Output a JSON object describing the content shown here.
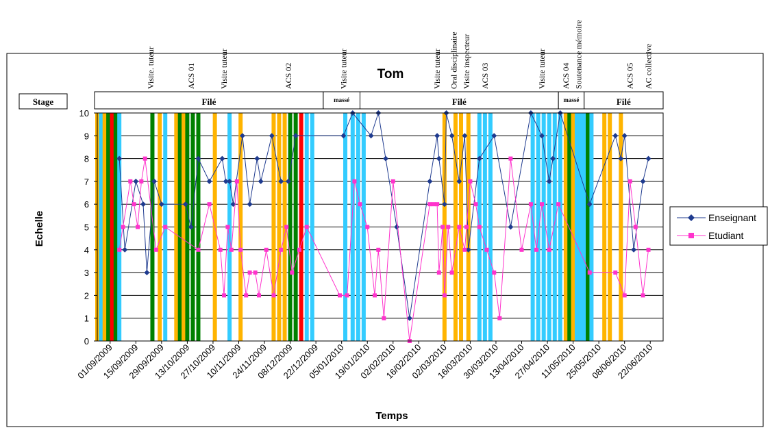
{
  "chart_data": {
    "type": "line",
    "title": "Tom",
    "xlabel": "Temps",
    "ylabel": "Echelle",
    "ylim": [
      0,
      10
    ],
    "yticks": [
      0,
      1,
      2,
      3,
      4,
      5,
      6,
      7,
      8,
      9,
      10
    ],
    "grid": true,
    "legend_position": "right",
    "x_tick_labels": [
      "01/09/2009",
      "15/09/2009",
      "29/09/2009",
      "13/10/2009",
      "27/10/2009",
      "10/11/2009",
      "24/11/2009",
      "08/12/2009",
      "22/12/2009",
      "05/01/2010",
      "19/01/2010",
      "02/02/2010",
      "16/02/2010",
      "02/03/2010",
      "16/03/2010",
      "30/03/2010",
      "13/04/2010",
      "27/04/2010",
      "11/05/2010",
      "25/05/2010",
      "08/06/2010",
      "22/06/2010"
    ],
    "stage_label": "Stage",
    "phases": [
      {
        "label": "Filé",
        "start": "2009-09-01",
        "end": "2010-01-02",
        "style": "normal"
      },
      {
        "label": "massé",
        "start": "2010-01-02",
        "end": "2010-01-22",
        "style": "small"
      },
      {
        "label": "Filé",
        "start": "2010-01-22",
        "end": "2010-05-10",
        "style": "normal"
      },
      {
        "label": "massé",
        "start": "2010-05-10",
        "end": "2010-05-24",
        "style": "small"
      },
      {
        "label": "Filé",
        "start": "2010-05-24",
        "end": "2010-07-06",
        "style": "normal"
      }
    ],
    "events": [
      {
        "label": "Visite. tuteur",
        "date": "2009-09-30"
      },
      {
        "label": "ACS 01",
        "date": "2009-10-22"
      },
      {
        "label": "Visite  tuteur",
        "date": "2009-11-09"
      },
      {
        "label": "ACS 02",
        "date": "2009-12-14"
      },
      {
        "label": "Visite tuteur",
        "date": "2010-01-13"
      },
      {
        "label": "Visite tuteur",
        "date": "2010-03-05"
      },
      {
        "label": "Oral disciplinaire",
        "date": "2010-03-14"
      },
      {
        "label": "Visite inspecteur",
        "date": "2010-03-21"
      },
      {
        "label": "ACS 03",
        "date": "2010-03-31"
      },
      {
        "label": "Visite tuteur",
        "date": "2010-05-01"
      },
      {
        "label": "ACS 04",
        "date": "2010-05-14"
      },
      {
        "label": "Soutenance mémoire",
        "date": "2010-05-21"
      },
      {
        "label": "ACS 05",
        "date": "2010-06-18"
      },
      {
        "label": "AC collective",
        "date": "2010-06-28"
      }
    ],
    "bars": [
      {
        "date": "2009-09-01",
        "color": "#FFB400"
      },
      {
        "date": "2009-09-03",
        "color": "#33CCFF"
      },
      {
        "date": "2009-09-05",
        "color": "#FFB400"
      },
      {
        "date": "2009-09-07",
        "color": "#008000"
      },
      {
        "date": "2009-09-09",
        "color": "#FF0000"
      },
      {
        "date": "2009-09-11",
        "color": "#008000"
      },
      {
        "date": "2009-09-13",
        "color": "#33CCFF"
      },
      {
        "date": "2009-10-01",
        "color": "#008000"
      },
      {
        "date": "2009-10-05",
        "color": "#FFB400"
      },
      {
        "date": "2009-10-08",
        "color": "#33CCFF"
      },
      {
        "date": "2009-10-14",
        "color": "#FFB400"
      },
      {
        "date": "2009-10-16",
        "color": "#008000"
      },
      {
        "date": "2009-10-18",
        "color": "#FFB400"
      },
      {
        "date": "2009-10-20",
        "color": "#008000"
      },
      {
        "date": "2009-10-23",
        "color": "#008000"
      },
      {
        "date": "2009-10-26",
        "color": "#008000"
      },
      {
        "date": "2009-11-04",
        "color": "#FFB400"
      },
      {
        "date": "2009-11-12",
        "color": "#33CCFF"
      },
      {
        "date": "2009-11-18",
        "color": "#FFB400"
      },
      {
        "date": "2009-12-06",
        "color": "#FFB400"
      },
      {
        "date": "2009-12-09",
        "color": "#FFB400"
      },
      {
        "date": "2009-12-12",
        "color": "#FFB400"
      },
      {
        "date": "2009-12-15",
        "color": "#008000"
      },
      {
        "date": "2009-12-18",
        "color": "#008000"
      },
      {
        "date": "2009-12-21",
        "color": "#FF0000"
      },
      {
        "date": "2009-12-24",
        "color": "#33CCFF"
      },
      {
        "date": "2009-12-27",
        "color": "#33CCFF"
      },
      {
        "date": "2010-01-14",
        "color": "#33CCFF"
      },
      {
        "date": "2010-01-18",
        "color": "#33CCFF"
      },
      {
        "date": "2010-01-21",
        "color": "#33CCFF"
      },
      {
        "date": "2010-01-24",
        "color": "#33CCFF"
      },
      {
        "date": "2010-03-09",
        "color": "#FFB400"
      },
      {
        "date": "2010-03-15",
        "color": "#FFB400"
      },
      {
        "date": "2010-03-18",
        "color": "#FFB400"
      },
      {
        "date": "2010-03-22",
        "color": "#FFB400"
      },
      {
        "date": "2010-03-28",
        "color": "#33CCFF"
      },
      {
        "date": "2010-03-31",
        "color": "#33CCFF"
      },
      {
        "date": "2010-04-03",
        "color": "#33CCFF"
      },
      {
        "date": "2010-04-26",
        "color": "#33CCFF"
      },
      {
        "date": "2010-04-29",
        "color": "#33CCFF"
      },
      {
        "date": "2010-05-02",
        "color": "#33CCFF"
      },
      {
        "date": "2010-05-05",
        "color": "#33CCFF"
      },
      {
        "date": "2010-05-08",
        "color": "#33CCFF"
      },
      {
        "date": "2010-05-11",
        "color": "#33CCFF"
      },
      {
        "date": "2010-05-14",
        "color": "#FFB400"
      },
      {
        "date": "2010-05-16",
        "color": "#008000"
      },
      {
        "date": "2010-05-18",
        "color": "#FFB400"
      },
      {
        "date": "2010-05-20",
        "color": "#33CCFF"
      },
      {
        "date": "2010-05-22",
        "color": "#33CCFF"
      },
      {
        "date": "2010-05-24",
        "color": "#33CCFF"
      },
      {
        "date": "2010-05-26",
        "color": "#008000"
      },
      {
        "date": "2010-05-28",
        "color": "#33CCFF"
      },
      {
        "date": "2010-06-04",
        "color": "#FFB400"
      },
      {
        "date": "2010-06-07",
        "color": "#FFB400"
      },
      {
        "date": "2010-06-13",
        "color": "#FFB400"
      }
    ],
    "series": [
      {
        "name": "Enseignant",
        "color": "#1F3B8F",
        "marker": "diamond",
        "points": [
          [
            "2009-09-13",
            8
          ],
          [
            "2009-09-16",
            4
          ],
          [
            "2009-09-22",
            7
          ],
          [
            "2009-09-26",
            6
          ],
          [
            "2009-09-28",
            3
          ],
          [
            "2009-10-02",
            7
          ],
          [
            "2009-10-06",
            6
          ],
          [
            "2009-10-19",
            6
          ],
          [
            "2009-10-22",
            5
          ],
          [
            "2009-10-26",
            8
          ],
          [
            "2009-11-01",
            7
          ],
          [
            "2009-11-08",
            8
          ],
          [
            "2009-11-10",
            7
          ],
          [
            "2009-11-12",
            7
          ],
          [
            "2009-11-14",
            6
          ],
          [
            "2009-11-19",
            9
          ],
          [
            "2009-11-23",
            6
          ],
          [
            "2009-11-27",
            8
          ],
          [
            "2009-11-29",
            7
          ],
          [
            "2009-12-05",
            9
          ],
          [
            "2009-12-10",
            7
          ],
          [
            "2009-12-14",
            7
          ],
          [
            "2009-12-18",
            9
          ],
          [
            "2010-01-13",
            9
          ],
          [
            "2010-01-18",
            10
          ],
          [
            "2010-01-28",
            9
          ],
          [
            "2010-02-01",
            10
          ],
          [
            "2010-02-05",
            8
          ],
          [
            "2010-02-11",
            5
          ],
          [
            "2010-02-18",
            1
          ],
          [
            "2010-03-01",
            7
          ],
          [
            "2010-03-05",
            9
          ],
          [
            "2010-03-06",
            8
          ],
          [
            "2010-03-09",
            6
          ],
          [
            "2010-03-10",
            10
          ],
          [
            "2010-03-13",
            9
          ],
          [
            "2010-03-17",
            7
          ],
          [
            "2010-03-20",
            9
          ],
          [
            "2010-03-22",
            4
          ],
          [
            "2010-03-28",
            8
          ],
          [
            "2010-04-05",
            9
          ],
          [
            "2010-04-14",
            5
          ],
          [
            "2010-04-25",
            10
          ],
          [
            "2010-05-01",
            9
          ],
          [
            "2010-05-05",
            7
          ],
          [
            "2010-05-07",
            8
          ],
          [
            "2010-05-11",
            10
          ],
          [
            "2010-05-27",
            6
          ],
          [
            "2010-06-10",
            9
          ],
          [
            "2010-06-13",
            8
          ],
          [
            "2010-06-15",
            9
          ],
          [
            "2010-06-20",
            4
          ],
          [
            "2010-06-25",
            7
          ],
          [
            "2010-06-28",
            8
          ]
        ]
      },
      {
        "name": "Etudiant",
        "color": "#FF33CC",
        "marker": "square",
        "points": [
          [
            "2009-09-13",
            4
          ],
          [
            "2009-09-15",
            5
          ],
          [
            "2009-09-19",
            7
          ],
          [
            "2009-09-21",
            6
          ],
          [
            "2009-09-23",
            5
          ],
          [
            "2009-09-25",
            7
          ],
          [
            "2009-09-27",
            8
          ],
          [
            "2009-10-03",
            4
          ],
          [
            "2009-10-08",
            5
          ],
          [
            "2009-10-26",
            4
          ],
          [
            "2009-11-01",
            6
          ],
          [
            "2009-11-07",
            4
          ],
          [
            "2009-11-09",
            2
          ],
          [
            "2009-11-11",
            5
          ],
          [
            "2009-11-13",
            4
          ],
          [
            "2009-11-16",
            7
          ],
          [
            "2009-11-18",
            4
          ],
          [
            "2009-11-21",
            2
          ],
          [
            "2009-11-23",
            3
          ],
          [
            "2009-11-26",
            3
          ],
          [
            "2009-11-28",
            2
          ],
          [
            "2009-12-02",
            4
          ],
          [
            "2009-12-06",
            2
          ],
          [
            "2009-12-10",
            4
          ],
          [
            "2009-12-13",
            5
          ],
          [
            "2009-12-16",
            3
          ],
          [
            "2009-12-20",
            4
          ],
          [
            "2009-12-24",
            5
          ],
          [
            "2010-01-11",
            2
          ],
          [
            "2010-01-15",
            2
          ],
          [
            "2010-01-19",
            7
          ],
          [
            "2010-01-22",
            6
          ],
          [
            "2010-01-26",
            5
          ],
          [
            "2010-01-30",
            2
          ],
          [
            "2010-02-01",
            4
          ],
          [
            "2010-02-04",
            1
          ],
          [
            "2010-02-09",
            7
          ],
          [
            "2010-02-18",
            0
          ],
          [
            "2010-03-01",
            6
          ],
          [
            "2010-03-03",
            6
          ],
          [
            "2010-03-05",
            6
          ],
          [
            "2010-03-06",
            3
          ],
          [
            "2010-03-08",
            5
          ],
          [
            "2010-03-09",
            2
          ],
          [
            "2010-03-11",
            5
          ],
          [
            "2010-03-13",
            3
          ],
          [
            "2010-03-17",
            5
          ],
          [
            "2010-03-20",
            4
          ],
          [
            "2010-03-21",
            5
          ],
          [
            "2010-03-23",
            7
          ],
          [
            "2010-03-26",
            6
          ],
          [
            "2010-03-28",
            5
          ],
          [
            "2010-04-01",
            4
          ],
          [
            "2010-04-05",
            3
          ],
          [
            "2010-04-08",
            1
          ],
          [
            "2010-04-14",
            8
          ],
          [
            "2010-04-20",
            4
          ],
          [
            "2010-04-25",
            6
          ],
          [
            "2010-04-28",
            4
          ],
          [
            "2010-05-01",
            6
          ],
          [
            "2010-05-05",
            4
          ],
          [
            "2010-05-10",
            6
          ],
          [
            "2010-05-27",
            3
          ],
          [
            "2010-06-10",
            3
          ],
          [
            "2010-06-15",
            2
          ],
          [
            "2010-06-18",
            7
          ],
          [
            "2010-06-21",
            5
          ],
          [
            "2010-06-25",
            2
          ],
          [
            "2010-06-28",
            4
          ]
        ]
      }
    ]
  }
}
